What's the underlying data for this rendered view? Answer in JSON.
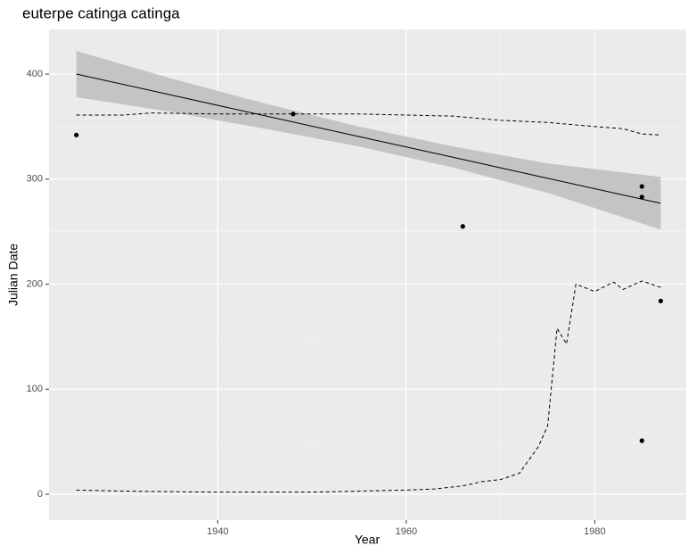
{
  "chart_data": {
    "type": "scatter",
    "title": "euterpe catinga catinga",
    "x_label": "Year",
    "y_label": "Julian Date",
    "xlim": [
      1922.1,
      1989.7
    ],
    "ylim": [
      -24.6,
      442.5
    ],
    "xticks": [
      1940,
      1960,
      1980
    ],
    "yticks": [
      0,
      100,
      200,
      300,
      400
    ],
    "grid": true,
    "points": {
      "color": "#000000",
      "x": [
        1925,
        1948,
        1966,
        1985,
        1985,
        1985,
        1987
      ],
      "y": [
        342,
        362,
        255,
        293,
        283,
        51,
        184
      ]
    },
    "fit": {
      "color": "#000000",
      "band_color": "#bdbdbd",
      "x": [
        1925,
        1935,
        1945,
        1955,
        1965,
        1975,
        1987
      ],
      "y": [
        400,
        380.2,
        360.3,
        340.5,
        320.7,
        300.8,
        277
      ],
      "lower": [
        378,
        364,
        348,
        331,
        311,
        287,
        252
      ],
      "upper": [
        422,
        396,
        372,
        350,
        331,
        315,
        302
      ]
    },
    "dashed": [
      {
        "x": [
          1925,
          1930,
          1933,
          1940,
          1950,
          1955,
          1960,
          1965,
          1970,
          1975,
          1980,
          1983,
          1985,
          1987
        ],
        "y": [
          361,
          361,
          363,
          362,
          362,
          362,
          361,
          360,
          356,
          354,
          350,
          348,
          343,
          342
        ]
      },
      {
        "x": [
          1925,
          1930,
          1940,
          1950,
          1955,
          1960,
          1963,
          1966,
          1968,
          1970,
          1972,
          1974,
          1975,
          1976,
          1977,
          1978,
          1980,
          1982,
          1983,
          1985,
          1987
        ],
        "y": [
          4,
          3,
          2,
          2,
          3,
          4,
          5,
          8,
          12,
          14,
          20,
          45,
          65,
          158,
          143,
          200,
          193,
          202,
          195,
          203,
          197
        ]
      }
    ]
  }
}
